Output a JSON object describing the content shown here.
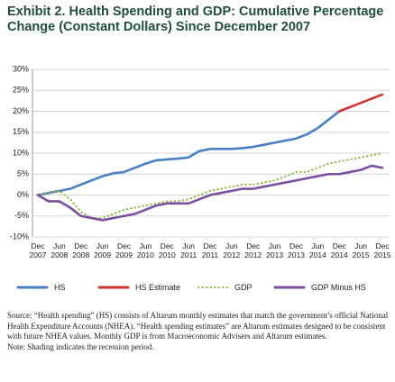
{
  "chart_data": {
    "type": "line",
    "title": "Exhibit 2. Health Spending and GDP: Cumulative Percentage Change (Constant Dollars) Since December 2007",
    "categories": [
      "Dec 2007",
      null,
      "Jun 2008",
      null,
      "Dec 2008",
      null,
      "Jun 2009",
      null,
      "Dec 2009",
      null,
      "Jun 2010",
      null,
      "Dec 2010",
      null,
      "Jun 2011",
      null,
      "Dec 2011",
      null,
      "Jun 2012",
      null,
      "Dec 2012",
      null,
      "Jun 2013",
      null,
      "Dec 2013",
      null,
      "Jun 2014",
      null,
      "Dec 2014",
      null,
      "Jun 2015",
      null,
      "Dec 2015"
    ],
    "series": [
      {
        "name": "HS",
        "color": "#4a7fc1",
        "style": "solid",
        "values": [
          0,
          0.5,
          1,
          1.5,
          2.5,
          3.5,
          4.5,
          5.2,
          5.5,
          6.5,
          7.5,
          8.3,
          8.5,
          8.7,
          9,
          10.5,
          11,
          11,
          11,
          11.2,
          11.5,
          12,
          12.5,
          13,
          13.5,
          14.5,
          16,
          18,
          20,
          null,
          null,
          null,
          null
        ]
      },
      {
        "name": "HS Estimate",
        "color": "#d2322d",
        "style": "solid",
        "values": [
          null,
          null,
          null,
          null,
          null,
          null,
          null,
          null,
          null,
          null,
          null,
          null,
          null,
          null,
          null,
          null,
          null,
          null,
          null,
          null,
          null,
          null,
          null,
          null,
          null,
          null,
          null,
          null,
          20,
          21,
          22,
          23,
          24
        ]
      },
      {
        "name": "GDP",
        "color": "#8cb63c",
        "style": "dotted",
        "values": [
          0,
          0.5,
          1,
          -1,
          -4,
          -5.5,
          -5.5,
          -4.5,
          -3.5,
          -3,
          -2.5,
          -2,
          -1.5,
          -1.5,
          -1,
          0,
          1,
          1.5,
          2,
          2.5,
          2.5,
          3,
          3.5,
          4.5,
          5.5,
          5.5,
          6.5,
          7.5,
          8,
          8.5,
          9,
          9.5,
          10
        ]
      },
      {
        "name": "GDP Minus HS",
        "color": "#7b4fa0",
        "style": "solid",
        "values": [
          0,
          -1.5,
          -1.5,
          -3,
          -5,
          -5.5,
          -6,
          -5.5,
          -5,
          -4.5,
          -3.5,
          -2.5,
          -2,
          -2,
          -2,
          -1,
          0,
          0.5,
          1,
          1.5,
          1.5,
          2,
          2.5,
          3,
          3.5,
          4,
          4.5,
          5,
          5,
          5.5,
          6,
          7,
          6.5
        ]
      }
    ],
    "ylim": [
      -10,
      30
    ],
    "yticks": [
      {
        "value": -10,
        "label": "-10%"
      },
      {
        "value": -5,
        "label": "-5%"
      },
      {
        "value": 0,
        "label": "0%"
      },
      {
        "value": 5,
        "label": "5%"
      },
      {
        "value": 10,
        "label": "10%"
      },
      {
        "value": 15,
        "label": "15%"
      },
      {
        "value": 20,
        "label": "20%"
      },
      {
        "value": 25,
        "label": "25%"
      },
      {
        "value": 30,
        "label": "30%"
      }
    ],
    "grid": true,
    "source": "Source: “Health spending” (HS) consists of Altarum monthly estimates that match the government’s official National Health Expenditure Accounts (NHEA). “Health spending estimates” are Altarum estimates designed to be consistent with future NHEA values. Monthly GDP is from Macroeconomic Advisers and Altarum estimates.",
    "note": "Note: Shading indicates the recession period."
  }
}
